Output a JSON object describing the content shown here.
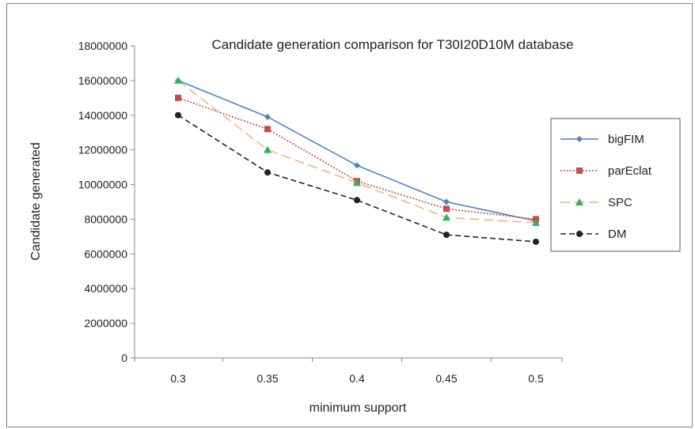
{
  "chart_data": {
    "type": "line",
    "title": "Candidate generation comparison for T30I20D10M database",
    "xlabel": "minimum support",
    "ylabel": "Candidate generated",
    "categories": [
      "0.3",
      "0.35",
      "0.4",
      "0.45",
      "0.5"
    ],
    "y_ticks": [
      "0",
      "2000000",
      "4000000",
      "6000000",
      "8000000",
      "10000000",
      "12000000",
      "14000000",
      "16000000",
      "18000000"
    ],
    "ylim": [
      0,
      18000000
    ],
    "grid": false,
    "legend_position": "right",
    "series": [
      {
        "name": "bigFIM",
        "values": [
          16000000,
          13900000,
          11100000,
          9000000,
          7900000
        ],
        "color": "#4f81bd",
        "marker": "diamond",
        "dash": "solid"
      },
      {
        "name": "parEclat",
        "values": [
          15000000,
          13200000,
          10200000,
          8600000,
          8000000
        ],
        "color": "#c0504d",
        "marker": "square",
        "dash": "dotted"
      },
      {
        "name": "SPC",
        "values": [
          16000000,
          12000000,
          10100000,
          8100000,
          7800000
        ],
        "color": "#f4b183",
        "marker": "triangle",
        "dash": "longdash",
        "marker_color": "#2fb35a"
      },
      {
        "name": "DM",
        "values": [
          14000000,
          10700000,
          9100000,
          7100000,
          6700000
        ],
        "color": "#222222",
        "marker": "circle",
        "dash": "dash"
      }
    ]
  }
}
